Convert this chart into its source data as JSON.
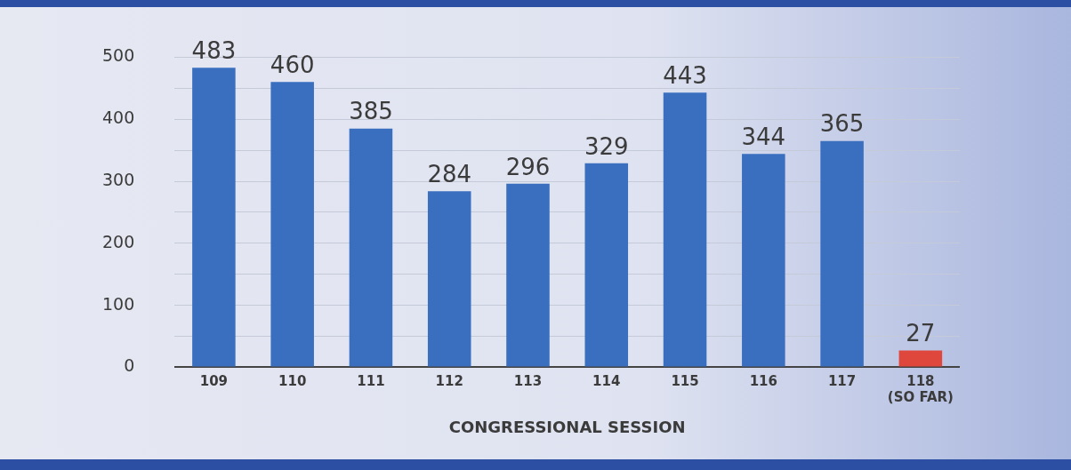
{
  "chart_data": {
    "type": "bar",
    "xlabel": "CONGRESSIONAL SESSION",
    "categories": [
      "109",
      "110",
      "111",
      "112",
      "113",
      "114",
      "115",
      "116",
      "117",
      "118\n(SO FAR)"
    ],
    "values": [
      483,
      460,
      385,
      284,
      296,
      329,
      443,
      344,
      365,
      27
    ],
    "colors": [
      "#3a6fc0",
      "#3a6fc0",
      "#3a6fc0",
      "#3a6fc0",
      "#3a6fc0",
      "#3a6fc0",
      "#3a6fc0",
      "#3a6fc0",
      "#3a6fc0",
      "#e0473c"
    ],
    "ylim": [
      0,
      500
    ],
    "yticks": [
      0,
      {
        "value": 50,
        "label": null
      },
      100,
      {
        "value": 150,
        "label": null
      },
      200,
      {
        "value": 250,
        "label": null
      },
      300,
      {
        "value": 350,
        "label": null
      },
      400,
      {
        "value": 450,
        "label": null
      },
      500
    ],
    "grid": "y",
    "data_labels": true,
    "legend": false
  }
}
